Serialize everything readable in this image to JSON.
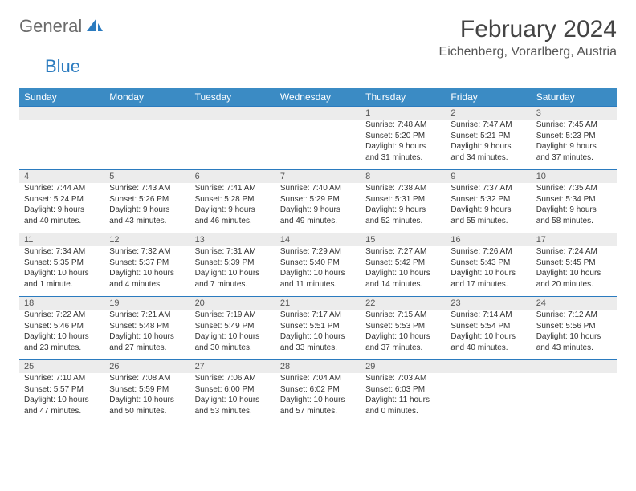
{
  "logo": {
    "general": "General",
    "blue": "Blue"
  },
  "title": "February 2024",
  "location": "Eichenberg, Vorarlberg, Austria",
  "colors": {
    "header_bg": "#3b8bc4",
    "header_text": "#ffffff",
    "border": "#2b7bbf",
    "daynum_bg": "#ececec",
    "text": "#333333",
    "logo_gray": "#6b6b6b",
    "logo_blue": "#2b7bbf"
  },
  "weekdays": [
    "Sunday",
    "Monday",
    "Tuesday",
    "Wednesday",
    "Thursday",
    "Friday",
    "Saturday"
  ],
  "weeks": [
    [
      null,
      null,
      null,
      null,
      {
        "n": "1",
        "sr": "Sunrise: 7:48 AM",
        "ss": "Sunset: 5:20 PM",
        "d1": "Daylight: 9 hours",
        "d2": "and 31 minutes."
      },
      {
        "n": "2",
        "sr": "Sunrise: 7:47 AM",
        "ss": "Sunset: 5:21 PM",
        "d1": "Daylight: 9 hours",
        "d2": "and 34 minutes."
      },
      {
        "n": "3",
        "sr": "Sunrise: 7:45 AM",
        "ss": "Sunset: 5:23 PM",
        "d1": "Daylight: 9 hours",
        "d2": "and 37 minutes."
      }
    ],
    [
      {
        "n": "4",
        "sr": "Sunrise: 7:44 AM",
        "ss": "Sunset: 5:24 PM",
        "d1": "Daylight: 9 hours",
        "d2": "and 40 minutes."
      },
      {
        "n": "5",
        "sr": "Sunrise: 7:43 AM",
        "ss": "Sunset: 5:26 PM",
        "d1": "Daylight: 9 hours",
        "d2": "and 43 minutes."
      },
      {
        "n": "6",
        "sr": "Sunrise: 7:41 AM",
        "ss": "Sunset: 5:28 PM",
        "d1": "Daylight: 9 hours",
        "d2": "and 46 minutes."
      },
      {
        "n": "7",
        "sr": "Sunrise: 7:40 AM",
        "ss": "Sunset: 5:29 PM",
        "d1": "Daylight: 9 hours",
        "d2": "and 49 minutes."
      },
      {
        "n": "8",
        "sr": "Sunrise: 7:38 AM",
        "ss": "Sunset: 5:31 PM",
        "d1": "Daylight: 9 hours",
        "d2": "and 52 minutes."
      },
      {
        "n": "9",
        "sr": "Sunrise: 7:37 AM",
        "ss": "Sunset: 5:32 PM",
        "d1": "Daylight: 9 hours",
        "d2": "and 55 minutes."
      },
      {
        "n": "10",
        "sr": "Sunrise: 7:35 AM",
        "ss": "Sunset: 5:34 PM",
        "d1": "Daylight: 9 hours",
        "d2": "and 58 minutes."
      }
    ],
    [
      {
        "n": "11",
        "sr": "Sunrise: 7:34 AM",
        "ss": "Sunset: 5:35 PM",
        "d1": "Daylight: 10 hours",
        "d2": "and 1 minute."
      },
      {
        "n": "12",
        "sr": "Sunrise: 7:32 AM",
        "ss": "Sunset: 5:37 PM",
        "d1": "Daylight: 10 hours",
        "d2": "and 4 minutes."
      },
      {
        "n": "13",
        "sr": "Sunrise: 7:31 AM",
        "ss": "Sunset: 5:39 PM",
        "d1": "Daylight: 10 hours",
        "d2": "and 7 minutes."
      },
      {
        "n": "14",
        "sr": "Sunrise: 7:29 AM",
        "ss": "Sunset: 5:40 PM",
        "d1": "Daylight: 10 hours",
        "d2": "and 11 minutes."
      },
      {
        "n": "15",
        "sr": "Sunrise: 7:27 AM",
        "ss": "Sunset: 5:42 PM",
        "d1": "Daylight: 10 hours",
        "d2": "and 14 minutes."
      },
      {
        "n": "16",
        "sr": "Sunrise: 7:26 AM",
        "ss": "Sunset: 5:43 PM",
        "d1": "Daylight: 10 hours",
        "d2": "and 17 minutes."
      },
      {
        "n": "17",
        "sr": "Sunrise: 7:24 AM",
        "ss": "Sunset: 5:45 PM",
        "d1": "Daylight: 10 hours",
        "d2": "and 20 minutes."
      }
    ],
    [
      {
        "n": "18",
        "sr": "Sunrise: 7:22 AM",
        "ss": "Sunset: 5:46 PM",
        "d1": "Daylight: 10 hours",
        "d2": "and 23 minutes."
      },
      {
        "n": "19",
        "sr": "Sunrise: 7:21 AM",
        "ss": "Sunset: 5:48 PM",
        "d1": "Daylight: 10 hours",
        "d2": "and 27 minutes."
      },
      {
        "n": "20",
        "sr": "Sunrise: 7:19 AM",
        "ss": "Sunset: 5:49 PM",
        "d1": "Daylight: 10 hours",
        "d2": "and 30 minutes."
      },
      {
        "n": "21",
        "sr": "Sunrise: 7:17 AM",
        "ss": "Sunset: 5:51 PM",
        "d1": "Daylight: 10 hours",
        "d2": "and 33 minutes."
      },
      {
        "n": "22",
        "sr": "Sunrise: 7:15 AM",
        "ss": "Sunset: 5:53 PM",
        "d1": "Daylight: 10 hours",
        "d2": "and 37 minutes."
      },
      {
        "n": "23",
        "sr": "Sunrise: 7:14 AM",
        "ss": "Sunset: 5:54 PM",
        "d1": "Daylight: 10 hours",
        "d2": "and 40 minutes."
      },
      {
        "n": "24",
        "sr": "Sunrise: 7:12 AM",
        "ss": "Sunset: 5:56 PM",
        "d1": "Daylight: 10 hours",
        "d2": "and 43 minutes."
      }
    ],
    [
      {
        "n": "25",
        "sr": "Sunrise: 7:10 AM",
        "ss": "Sunset: 5:57 PM",
        "d1": "Daylight: 10 hours",
        "d2": "and 47 minutes."
      },
      {
        "n": "26",
        "sr": "Sunrise: 7:08 AM",
        "ss": "Sunset: 5:59 PM",
        "d1": "Daylight: 10 hours",
        "d2": "and 50 minutes."
      },
      {
        "n": "27",
        "sr": "Sunrise: 7:06 AM",
        "ss": "Sunset: 6:00 PM",
        "d1": "Daylight: 10 hours",
        "d2": "and 53 minutes."
      },
      {
        "n": "28",
        "sr": "Sunrise: 7:04 AM",
        "ss": "Sunset: 6:02 PM",
        "d1": "Daylight: 10 hours",
        "d2": "and 57 minutes."
      },
      {
        "n": "29",
        "sr": "Sunrise: 7:03 AM",
        "ss": "Sunset: 6:03 PM",
        "d1": "Daylight: 11 hours",
        "d2": "and 0 minutes."
      },
      null,
      null
    ]
  ]
}
